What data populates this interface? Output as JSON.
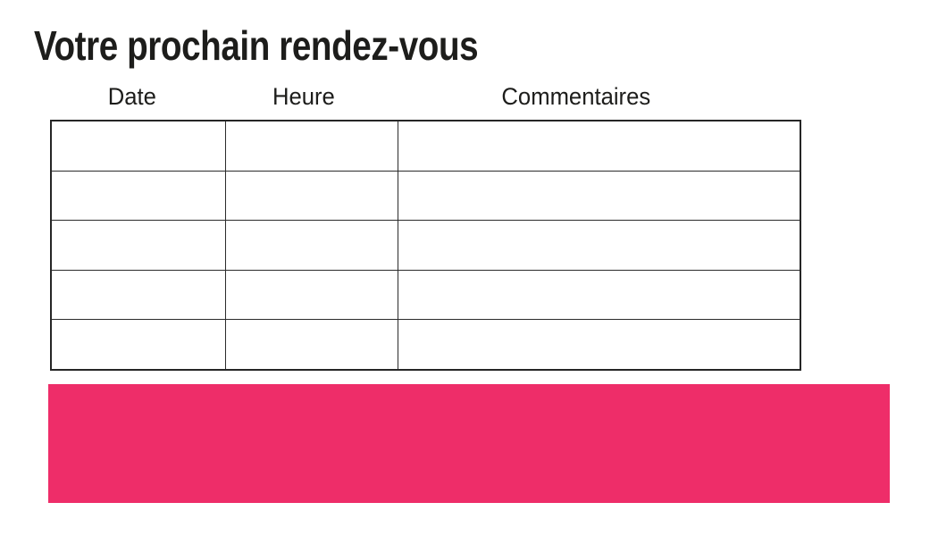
{
  "page": {
    "title": "Votre prochain rendez-vous"
  },
  "table": {
    "headers": [
      "Date",
      "Heure",
      "Commentaires"
    ],
    "row_count": 5,
    "column_count": 3,
    "cells": [
      [
        "",
        "",
        ""
      ],
      [
        "",
        "",
        ""
      ],
      [
        "",
        "",
        ""
      ],
      [
        "",
        "",
        ""
      ],
      [
        "",
        "",
        ""
      ]
    ]
  },
  "colors": {
    "accent_pink": "#EE2D69",
    "text": "#1D1D1B",
    "table_border": "#2B2B2B"
  }
}
